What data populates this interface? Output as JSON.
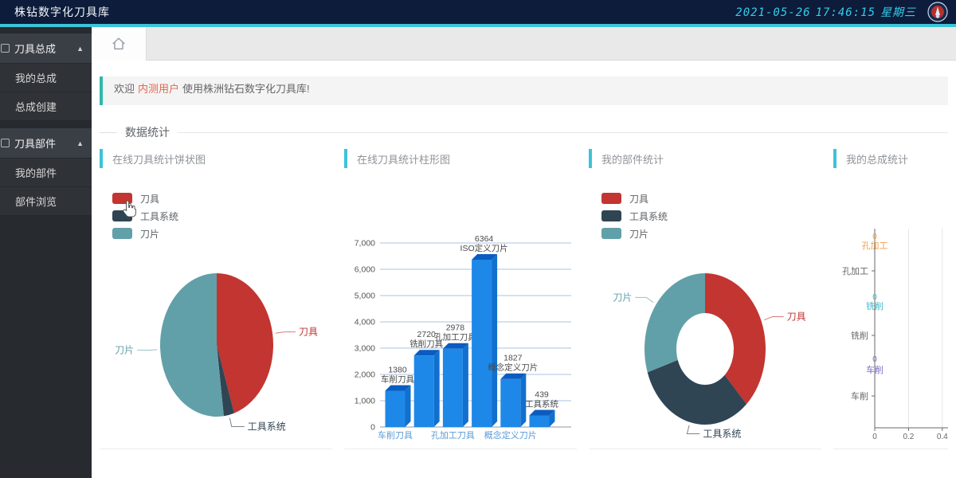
{
  "app": {
    "title": "株钻数字化刀具库",
    "date": "2021-05-26",
    "time": "17:46:15",
    "weekday": "星期三"
  },
  "sidebar": {
    "sections": [
      {
        "label": "刀具总成",
        "items": [
          "我的总成",
          "总成创建"
        ]
      },
      {
        "label": "刀具部件",
        "items": [
          "我的部件",
          "部件浏览"
        ]
      }
    ]
  },
  "welcome": {
    "prefix": "欢迎",
    "user": "内测用户",
    "suffix": "使用株洲钻石数字化刀具库!"
  },
  "section_title": "数据统计",
  "colors": {
    "accent": "#3cc3d8",
    "welcome_accent": "#30b8ac",
    "user_text": "#e0694e",
    "topbar_bg": "#0c1c3a",
    "clock_text": "#35cdea"
  },
  "chart_data": [
    {
      "type": "pie",
      "title": "在线刀具统计饼状图",
      "legend": [
        "刀具",
        "工具系统",
        "刀片"
      ],
      "colors": [
        "#c23531",
        "#2f4554",
        "#61a0a8"
      ],
      "legend_position": "top-left",
      "series": [
        {
          "name": "刀具",
          "value_pct": 45
        },
        {
          "name": "工具系统",
          "value_pct": 3
        },
        {
          "name": "刀片",
          "value_pct": 52
        }
      ]
    },
    {
      "type": "bar",
      "title": "在线刀具统计柱形图",
      "categories": [
        "车削刀具",
        "铣削刀具",
        "孔加工刀具",
        "ISO定义刀片",
        "概念定义刀片",
        "工具系统"
      ],
      "values": [
        1380,
        2720,
        2978,
        6364,
        1827,
        439
      ],
      "ylim": [
        0,
        7000
      ],
      "ytick_step": 1000,
      "yticks": [
        "0",
        "1,000",
        "2,000",
        "3,000",
        "4,000",
        "5,000",
        "6,000",
        "7,000"
      ],
      "visible_xlabel_indices": [
        0,
        2,
        4
      ],
      "bar_color": "#1e88e8",
      "bar_top_color": "#0a5cc0",
      "bar_side_color": "#1170cf",
      "xlabel_color": "#5b9bd5",
      "grid": true
    },
    {
      "type": "donut",
      "title": "我的部件统计",
      "legend": [
        "刀具",
        "工具系统",
        "刀片"
      ],
      "colors": [
        "#c23531",
        "#2f4554",
        "#61a0a8"
      ],
      "legend_position": "top-left",
      "series": [
        {
          "name": "刀具",
          "value_pct": 38
        },
        {
          "name": "工具系统",
          "value_pct": 32
        },
        {
          "name": "刀片",
          "value_pct": 30
        }
      ]
    },
    {
      "type": "hbar",
      "title": "我的总成统计",
      "categories": [
        "孔加工",
        "铣削",
        "车削"
      ],
      "series": [
        {
          "name": "孔加工",
          "value": 0,
          "color": "#f0a050"
        },
        {
          "name": "铣削",
          "value": 0,
          "color": "#3fb7c9"
        },
        {
          "name": "车削",
          "value": 0,
          "color": "#7b68c9"
        }
      ],
      "xticks": [
        "0",
        "0.2",
        "0.4"
      ],
      "xlim": [
        0,
        0.5
      ],
      "grid": true
    }
  ]
}
